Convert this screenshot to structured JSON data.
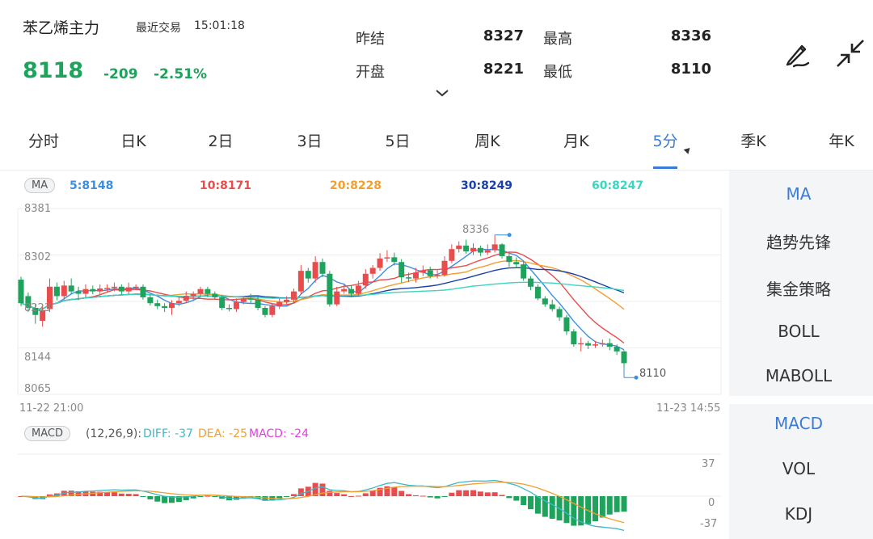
{
  "header": {
    "name": "苯乙烯主力",
    "trade_label": "最近交易",
    "trade_time": "15:01:18",
    "price": "8118",
    "change": "-209",
    "change_pct": "-2.51%"
  },
  "quote": {
    "prev_close_label": "昨结",
    "prev_close": "8327",
    "high_label": "最高",
    "high": "8336",
    "open_label": "开盘",
    "open": "8221",
    "low_label": "最低",
    "low": "8110"
  },
  "icons": {
    "draw": "pen-draw-icon",
    "collapse": "collapse-arrows-icon",
    "expand": "chevron-down-icon"
  },
  "tabs": [
    {
      "label": "分时"
    },
    {
      "label": "日K"
    },
    {
      "label": "2日"
    },
    {
      "label": "3日"
    },
    {
      "label": "5日"
    },
    {
      "label": "周K"
    },
    {
      "label": "月K"
    },
    {
      "label": "5分",
      "active": true
    },
    {
      "label": "季K"
    },
    {
      "label": "年K"
    }
  ],
  "indicators_main": [
    "MA",
    "趋势先锋",
    "集金策略",
    "BOLL",
    "MABOLL"
  ],
  "indicators_sub": [
    "MACD",
    "VOL",
    "KDJ"
  ],
  "ma": {
    "badge": "MA",
    "items": [
      {
        "label": "5:8148",
        "color": "#3b8ee0"
      },
      {
        "label": "10:8171",
        "color": "#e84c4c"
      },
      {
        "label": "20:8228",
        "color": "#f0a030"
      },
      {
        "label": "30:8249",
        "color": "#1a3fa8"
      },
      {
        "label": "60:8247",
        "color": "#3cd6c0"
      }
    ]
  },
  "macd": {
    "badge": "MACD",
    "params": "(12,26,9):",
    "diff_label": "DIFF: -37",
    "dea_label": "DEA: -25",
    "macd_label": "MACD: -24",
    "diff_color": "#3bb9c9",
    "dea_color": "#f0a030",
    "macd_color": "#e040e0",
    "axis": {
      "top": "37",
      "zero": "0",
      "bottom": "-37"
    }
  },
  "chart_data": {
    "type": "candlestick",
    "y_axis_labels": [
      "8381",
      "8302",
      "8223",
      "8144",
      "8065"
    ],
    "ylim": [
      8065,
      8381
    ],
    "x_labels": {
      "start": "11-22 21:00",
      "end": "11-23 14:55"
    },
    "high_marker": "8336",
    "low_marker": "8110",
    "up_color": "#e84c4c",
    "down_color": "#1da35b",
    "candles": [
      [
        8260,
        8220,
        8265,
        8215
      ],
      [
        8232,
        8212,
        8238,
        8205
      ],
      [
        8212,
        8200,
        8218,
        8185
      ],
      [
        8190,
        8208,
        8216,
        8180
      ],
      [
        8210,
        8248,
        8262,
        8205
      ],
      [
        8248,
        8232,
        8255,
        8225
      ],
      [
        8232,
        8250,
        8258,
        8226
      ],
      [
        8250,
        8240,
        8262,
        8236
      ],
      [
        8240,
        8236,
        8248,
        8225
      ],
      [
        8236,
        8244,
        8252,
        8230
      ],
      [
        8244,
        8240,
        8250,
        8235
      ],
      [
        8240,
        8245,
        8252,
        8235
      ],
      [
        8245,
        8246,
        8252,
        8238
      ],
      [
        8246,
        8248,
        8255,
        8240
      ],
      [
        8248,
        8240,
        8252,
        8235
      ],
      [
        8240,
        8247,
        8255,
        8236
      ],
      [
        8247,
        8248,
        8252,
        8242
      ],
      [
        8248,
        8230,
        8252,
        8226
      ],
      [
        8230,
        8220,
        8235,
        8216
      ],
      [
        8220,
        8215,
        8226,
        8210
      ],
      [
        8215,
        8212,
        8220,
        8205
      ],
      [
        8212,
        8220,
        8225,
        8200
      ],
      [
        8220,
        8224,
        8230,
        8215
      ],
      [
        8224,
        8232,
        8240,
        8220
      ],
      [
        8232,
        8236,
        8240,
        8226
      ],
      [
        8236,
        8244,
        8248,
        8232
      ],
      [
        8244,
        8236,
        8248,
        8230
      ],
      [
        8236,
        8230,
        8240,
        8226
      ],
      [
        8230,
        8212,
        8234,
        8208
      ],
      [
        8212,
        8210,
        8218,
        8206
      ],
      [
        8210,
        8222,
        8228,
        8205
      ],
      [
        8222,
        8228,
        8232,
        8218
      ],
      [
        8228,
        8226,
        8236,
        8220
      ],
      [
        8226,
        8212,
        8232,
        8208
      ],
      [
        8212,
        8200,
        8215,
        8196
      ],
      [
        8200,
        8215,
        8220,
        8196
      ],
      [
        8215,
        8222,
        8228,
        8210
      ],
      [
        8222,
        8226,
        8232,
        8218
      ],
      [
        8226,
        8240,
        8245,
        8220
      ],
      [
        8240,
        8275,
        8285,
        8235
      ],
      [
        8275,
        8262,
        8280,
        8255
      ],
      [
        8262,
        8290,
        8300,
        8255
      ],
      [
        8290,
        8270,
        8296,
        8264
      ],
      [
        8270,
        8218,
        8275,
        8214
      ],
      [
        8218,
        8240,
        8248,
        8215
      ],
      [
        8240,
        8244,
        8252,
        8236
      ],
      [
        8244,
        8236,
        8250,
        8230
      ],
      [
        8236,
        8250,
        8258,
        8232
      ],
      [
        8250,
        8270,
        8278,
        8245
      ],
      [
        8270,
        8280,
        8285,
        8262
      ],
      [
        8280,
        8296,
        8305,
        8275
      ],
      [
        8296,
        8298,
        8310,
        8290
      ],
      [
        8298,
        8290,
        8306,
        8284
      ],
      [
        8290,
        8264,
        8295,
        8255
      ],
      [
        8264,
        8262,
        8272,
        8256
      ],
      [
        8262,
        8272,
        8280,
        8255
      ],
      [
        8272,
        8276,
        8284,
        8266
      ],
      [
        8276,
        8266,
        8282,
        8262
      ],
      [
        8266,
        8268,
        8276,
        8262
      ],
      [
        8268,
        8292,
        8300,
        8265
      ],
      [
        8292,
        8312,
        8320,
        8288
      ],
      [
        8312,
        8318,
        8325,
        8306
      ],
      [
        8318,
        8308,
        8328,
        8304
      ],
      [
        8308,
        8314,
        8322,
        8302
      ],
      [
        8314,
        8306,
        8318,
        8300
      ],
      [
        8306,
        8310,
        8320,
        8302
      ],
      [
        8310,
        8320,
        8336,
        8306
      ],
      [
        8320,
        8300,
        8322,
        8296
      ],
      [
        8300,
        8290,
        8304,
        8282
      ],
      [
        8290,
        8286,
        8298,
        8280
      ],
      [
        8286,
        8262,
        8292,
        8258
      ],
      [
        8262,
        8248,
        8266,
        8242
      ],
      [
        8248,
        8228,
        8252,
        8225
      ],
      [
        8228,
        8218,
        8232,
        8214
      ],
      [
        8218,
        8210,
        8226,
        8206
      ],
      [
        8210,
        8196,
        8214,
        8190
      ],
      [
        8196,
        8172,
        8200,
        8166
      ],
      [
        8172,
        8150,
        8176,
        8146
      ],
      [
        8150,
        8152,
        8162,
        8138
      ],
      [
        8152,
        8148,
        8156,
        8142
      ],
      [
        8148,
        8150,
        8156,
        8144
      ],
      [
        8150,
        8152,
        8158,
        8146
      ],
      [
        8152,
        8146,
        8160,
        8140
      ],
      [
        8146,
        8138,
        8150,
        8132
      ],
      [
        8138,
        8118,
        8140,
        8110
      ]
    ],
    "macd_series": {
      "note": "DIFF/DEA lines and MACD histogram",
      "ylim": [
        -40,
        40
      ]
    }
  }
}
